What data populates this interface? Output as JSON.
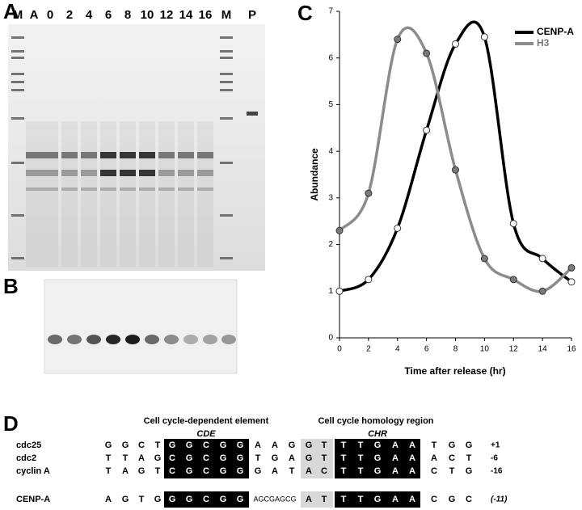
{
  "panel_a": {
    "letter": "A",
    "lanes": [
      "M",
      "A",
      "0",
      "2",
      "4",
      "6",
      "8",
      "10",
      "12",
      "14",
      "16",
      "M",
      "P"
    ]
  },
  "panel_b": {
    "letter": "B"
  },
  "panel_c": {
    "letter": "C"
  },
  "chart_data": {
    "type": "line",
    "x_label": "Time after release (hr)",
    "y_label": "Abundance",
    "x": [
      0,
      2,
      4,
      6,
      8,
      10,
      12,
      14,
      16
    ],
    "series": [
      {
        "name": "CENP-A",
        "color": "#000000",
        "marker_fill": "#ffffff",
        "values": [
          1.0,
          1.25,
          2.35,
          4.45,
          6.3,
          6.45,
          2.45,
          1.7,
          1.2
        ]
      },
      {
        "name": "H3",
        "color": "#8c8c8c",
        "marker_fill": "#7a7a7a",
        "values": [
          2.3,
          3.1,
          6.4,
          6.1,
          3.6,
          1.7,
          1.25,
          1.0,
          1.5
        ]
      }
    ],
    "xlim": [
      0,
      16
    ],
    "xticks": [
      0,
      2,
      4,
      6,
      8,
      10,
      12,
      14,
      16
    ],
    "ylim": [
      0,
      7
    ],
    "yticks": [
      0,
      1,
      2,
      3,
      4,
      5,
      6,
      7
    ],
    "legend": "upper right"
  },
  "panel_d": {
    "letter": "D",
    "cde_title": "Cell cycle-dependent element",
    "cde": "CDE",
    "chr_title": "Cell cycle homology region",
    "chr": "CHR",
    "rows": [
      {
        "name": "cdc25",
        "pre": [
          "G",
          "G",
          "C",
          "T"
        ],
        "cde": [
          "G",
          "G",
          "C",
          "G",
          "G"
        ],
        "mid": [
          "A",
          "A",
          "G"
        ],
        "gray": [
          "G",
          "T"
        ],
        "chr": [
          "T",
          "T",
          "G",
          "A",
          "A"
        ],
        "post": [
          "T",
          "G",
          "G"
        ],
        "pos": "+1"
      },
      {
        "name": "cdc2",
        "pre": [
          "T",
          "T",
          "A",
          "G"
        ],
        "cde": [
          "C",
          "G",
          "C",
          "G",
          "G"
        ],
        "mid": [
          "T",
          "G",
          "A"
        ],
        "gray": [
          "G",
          "T"
        ],
        "chr": [
          "T",
          "T",
          "G",
          "A",
          "A"
        ],
        "post": [
          "A",
          "C",
          "T"
        ],
        "pos": "-6"
      },
      {
        "name": "cyclin A",
        "pre": [
          "T",
          "A",
          "G",
          "T"
        ],
        "cde": [
          "C",
          "G",
          "C",
          "G",
          "G"
        ],
        "mid": [
          "G",
          "A",
          "T"
        ],
        "gray": [
          "A",
          "C"
        ],
        "chr": [
          "T",
          "T",
          "G",
          "A",
          "A"
        ],
        "post": [
          "C",
          "T",
          "G"
        ],
        "pos": "-16"
      }
    ],
    "cenp": {
      "name": "CENP-A",
      "pre": [
        "A",
        "G",
        "T",
        "G"
      ],
      "cde": [
        "G",
        "G",
        "C",
        "G",
        "G"
      ],
      "mid_text": "AGCGAGCG",
      "gray": [
        "A",
        "T"
      ],
      "chr": [
        "T",
        "T",
        "G",
        "A",
        "A"
      ],
      "post": [
        "C",
        "G",
        "C"
      ],
      "pos": "(-11)"
    }
  }
}
